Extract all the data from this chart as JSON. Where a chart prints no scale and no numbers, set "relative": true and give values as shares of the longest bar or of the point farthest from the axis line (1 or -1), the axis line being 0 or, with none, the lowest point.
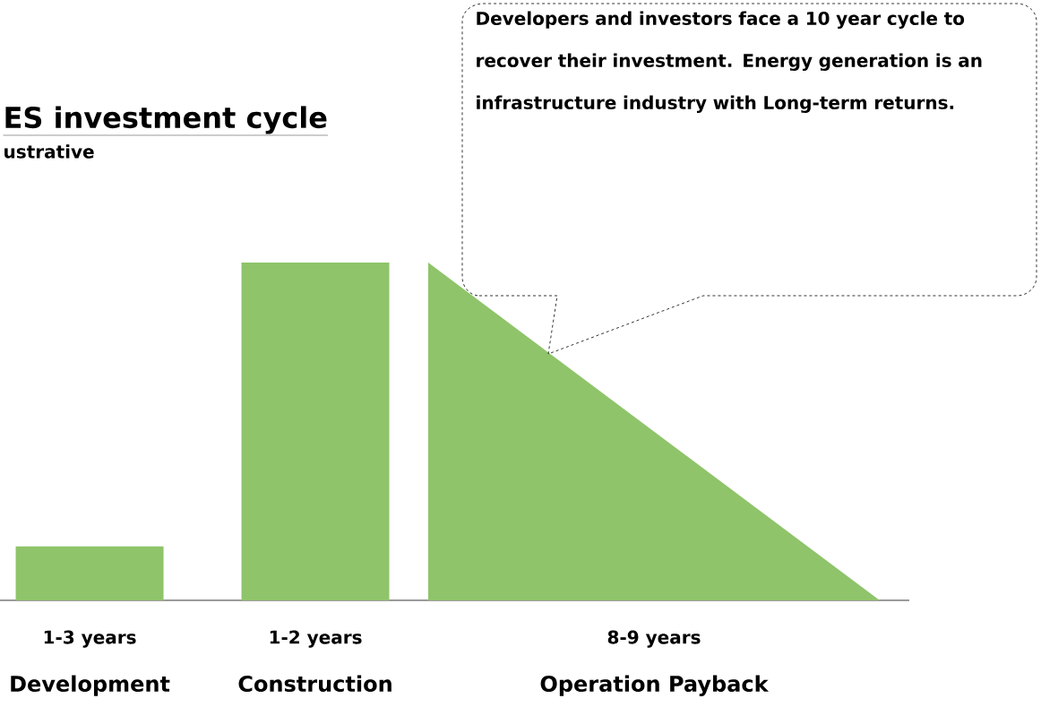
{
  "chart_data": {
    "type": "bar",
    "title": "ES investment cycle",
    "subtitle": "ustrative",
    "relative": true,
    "categories": [
      "Development",
      null,
      "Construction",
      null,
      null,
      "Operation Payback",
      null,
      null
    ],
    "series": [
      {
        "color": "#8fc46a",
        "values": [
          0.16,
          null,
          1,
          null,
          null,
          null,
          null,
          null
        ]
      },
      {
        "type": "area",
        "color": "#8fc46a",
        "values": [
          null,
          null,
          null,
          1,
          0.75,
          0.5,
          0.25,
          0
        ]
      }
    ],
    "annotations": [
      "Developers and investors face a 10 year cycle to recover their investment. Energy generation is an infrastructure industry with Long-term returns.",
      "1-3 years",
      "1-2 years",
      "8-9 years"
    ]
  }
}
